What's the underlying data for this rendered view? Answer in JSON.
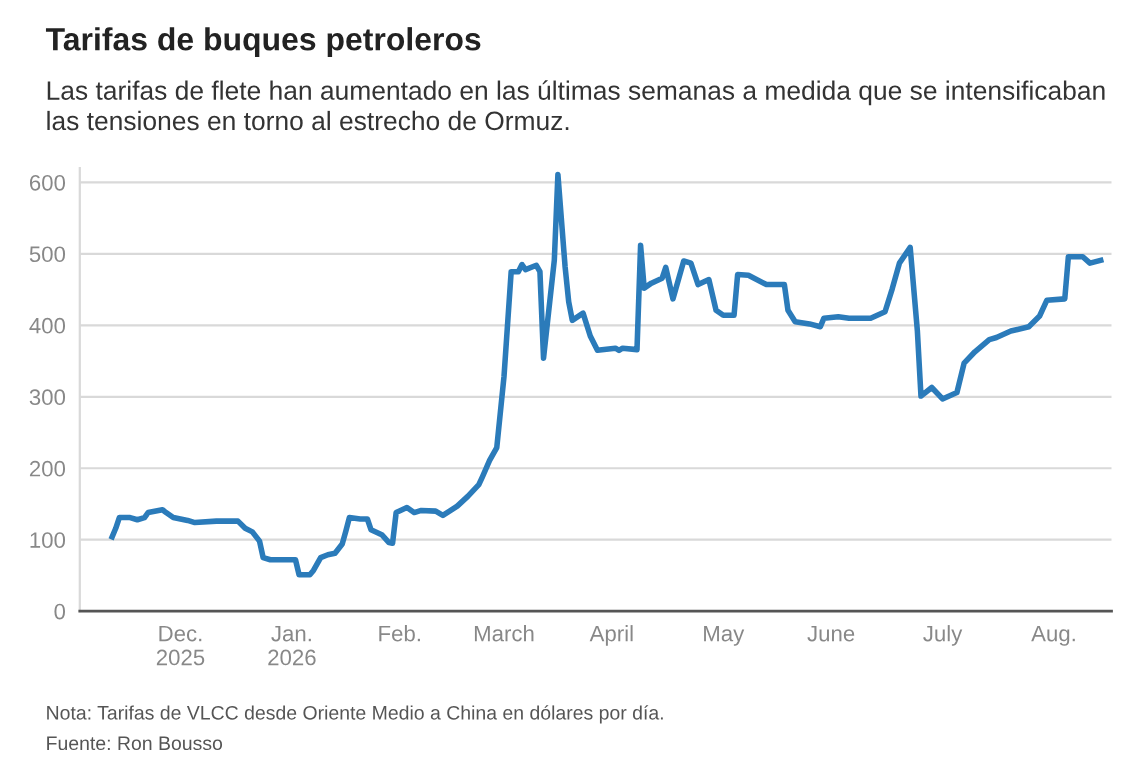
{
  "chart_data": {
    "type": "line",
    "title": "Tarifas de buques petroleros",
    "subtitle": "Las tarifas de flete han aumentado en las últimas semanas a medida que se intensificaban las tensiones en torno al estrecho de Ormuz.",
    "annotations": [
      "Nota: Tarifas de VLCC desde Oriente Medio a China en dólares por día.",
      "Fuente: Ron Bousso"
    ],
    "x": [
      "2025-11-27",
      "2025-11-28",
      "2025-11-29",
      "2025-12-02",
      "2025-12-04",
      "2025-12-06",
      "2025-12-07",
      "2025-12-11",
      "2025-12-12",
      "2025-12-14",
      "2025-12-18",
      "2025-12-20",
      "2025-12-26",
      "2026-01-01",
      "2026-01-03",
      "2026-01-05",
      "2026-01-07",
      "2026-01-08",
      "2026-01-10",
      "2026-01-17",
      "2026-01-18",
      "2026-01-21",
      "2026-01-22",
      "2026-01-24",
      "2026-01-26",
      "2026-01-28",
      "2026-01-30",
      "2026-01-31",
      "2026-02-01",
      "2026-02-04",
      "2026-02-06",
      "2026-02-07",
      "2026-02-10",
      "2026-02-12",
      "2026-02-13",
      "2026-02-14",
      "2026-02-17",
      "2026-02-19",
      "2026-02-21",
      "2026-02-25",
      "2026-02-27",
      "2026-03-03",
      "2026-03-06",
      "2026-03-09",
      "2026-03-10",
      "2026-03-12",
      "2026-03-14",
      "2026-03-16",
      "2026-03-18",
      "2026-03-20",
      "2026-03-21",
      "2026-03-22",
      "2026-03-25",
      "2026-03-26",
      "2026-03-27",
      "2026-03-30",
      "2026-03-31",
      "2026-04-02",
      "2026-04-03",
      "2026-04-04",
      "2026-04-07",
      "2026-04-09",
      "2026-04-11",
      "2026-04-16",
      "2026-04-17",
      "2026-04-18",
      "2026-04-22",
      "2026-04-23",
      "2026-04-24",
      "2026-04-26",
      "2026-04-29",
      "2026-04-30",
      "2026-05-02",
      "2026-05-05",
      "2026-05-07",
      "2026-05-09",
      "2026-05-12",
      "2026-05-14",
      "2026-05-16",
      "2026-05-19",
      "2026-05-20",
      "2026-05-23",
      "2026-05-28",
      "2026-06-02",
      "2026-06-03",
      "2026-06-05",
      "2026-06-09",
      "2026-06-12",
      "2026-06-13",
      "2026-06-17",
      "2026-06-20",
      "2026-06-26",
      "2026-06-30",
      "2026-07-02",
      "2026-07-04",
      "2026-07-07",
      "2026-07-09",
      "2026-07-10",
      "2026-07-13",
      "2026-07-16",
      "2026-07-20",
      "2026-07-22",
      "2026-07-25",
      "2026-07-29",
      "2026-07-31",
      "2026-08-04",
      "2026-08-09",
      "2026-08-12",
      "2026-08-14",
      "2026-08-19",
      "2026-08-20",
      "2026-08-24",
      "2026-08-26",
      "2026-08-29"
    ],
    "series": [
      {
        "color": "#2b7bba",
        "values": [
          104,
          116,
          131,
          131,
          128,
          131,
          138,
          142,
          138,
          131,
          127,
          124,
          126,
          126,
          116,
          111,
          98,
          75,
          72,
          72,
          51,
          51,
          57,
          75,
          79,
          81,
          94,
          112,
          131,
          129,
          129,
          114,
          107,
          96,
          95,
          138,
          145,
          138,
          141,
          140,
          134,
          147,
          161,
          177,
          188,
          211,
          229,
          328,
          475,
          475,
          485,
          478,
          484,
          475,
          354,
          491,
          611,
          482,
          433,
          407,
          417,
          385,
          365,
          368,
          365,
          368,
          366,
          512,
          452,
          459,
          466,
          481,
          437,
          490,
          487,
          457,
          464,
          421,
          414,
          414,
          471,
          470,
          457,
          457,
          421,
          405,
          402,
          398,
          410,
          412,
          410,
          410,
          419,
          451,
          487,
          509,
          392,
          301,
          313,
          297,
          306,
          347,
          363,
          380,
          383,
          392,
          398,
          413,
          435,
          437,
          496,
          496,
          487,
          491
        ]
      }
    ],
    "xlim": [
      "2025-11-18",
      "2026-09-01"
    ],
    "xticks": [
      {
        "value": "2025-12-16",
        "label": "Dec.\n2025"
      },
      {
        "value": "2026-01-16",
        "label": "Jan.\n2026"
      },
      {
        "value": "2026-02-15",
        "label": "Feb."
      },
      {
        "value": "2026-03-16",
        "label": "March"
      },
      {
        "value": "2026-04-15",
        "label": "April"
      },
      {
        "value": "2026-05-16",
        "label": "May"
      },
      {
        "value": "2026-06-15",
        "label": "June"
      },
      {
        "value": "2026-07-16",
        "label": "July"
      },
      {
        "value": "2026-08-16",
        "label": "Aug."
      }
    ],
    "ylim": [
      0,
      620
    ],
    "yticks": [
      0,
      100,
      200,
      300,
      400,
      500,
      600
    ],
    "grid": "y",
    "legend": false
  }
}
